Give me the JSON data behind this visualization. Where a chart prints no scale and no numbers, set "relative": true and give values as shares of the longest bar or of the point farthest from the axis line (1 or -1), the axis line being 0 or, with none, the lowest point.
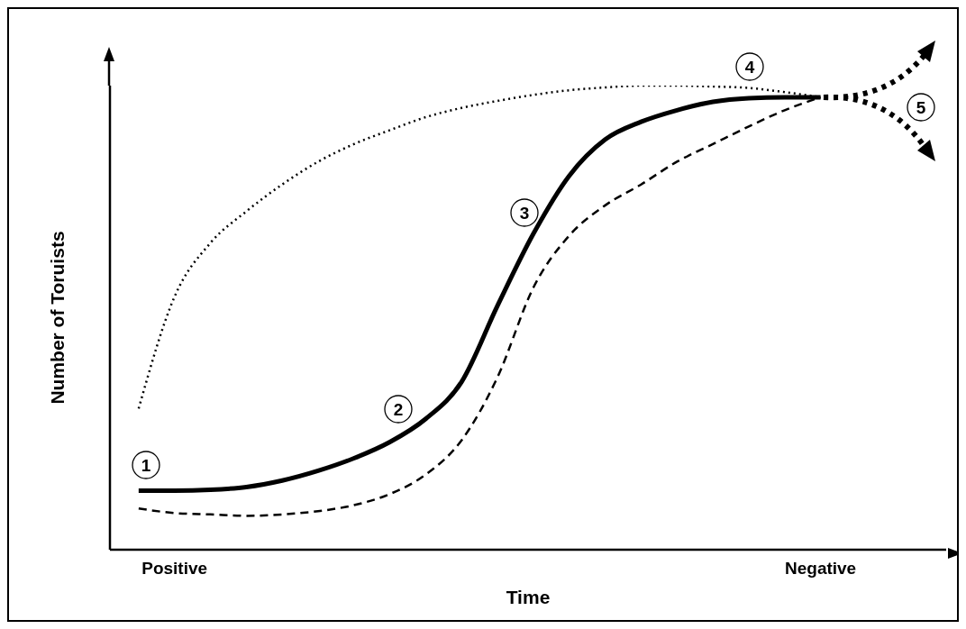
{
  "chart_data": {
    "type": "line",
    "relative": true,
    "xlabel": "Time",
    "ylabel": "Number of Toruists",
    "categories": [
      null,
      "Positive",
      null,
      null,
      null,
      null,
      null,
      null,
      null,
      null,
      null,
      null,
      null,
      null,
      null,
      null,
      null,
      null,
      null,
      "Negative",
      null,
      null,
      null
    ],
    "series": [
      {
        "color": "#000000",
        "line_style": "dotted",
        "values": [
          0.304,
          0.545,
          0.661,
          0.729,
          0.787,
          0.836,
          0.874,
          0.904,
          0.932,
          0.952,
          0.967,
          0.98,
          0.99,
          0.996,
          1,
          1,
          0.998,
          0.995,
          0.986,
          0.975,
          null,
          null,
          null
        ]
      },
      {
        "color": "#000000",
        "line_style": "dashed",
        "values": [
          0.089,
          0.079,
          0.076,
          0.073,
          0.076,
          0.083,
          0.096,
          0.12,
          0.162,
          0.236,
          0.372,
          0.565,
          0.677,
          0.742,
          0.787,
          0.836,
          0.874,
          0.912,
          0.947,
          0.975,
          null,
          null,
          null
        ]
      },
      {
        "color": "#000000",
        "line_style": "solid",
        "values": [
          0.127,
          0.127,
          0.129,
          0.135,
          0.149,
          0.17,
          0.197,
          0.232,
          0.282,
          0.362,
          0.526,
          0.681,
          0.806,
          0.884,
          0.922,
          0.947,
          0.965,
          0.973,
          0.975,
          0.975,
          null,
          null,
          null
        ]
      }
    ],
    "annotations": [
      "1",
      "2",
      "3",
      "4",
      "5"
    ]
  }
}
